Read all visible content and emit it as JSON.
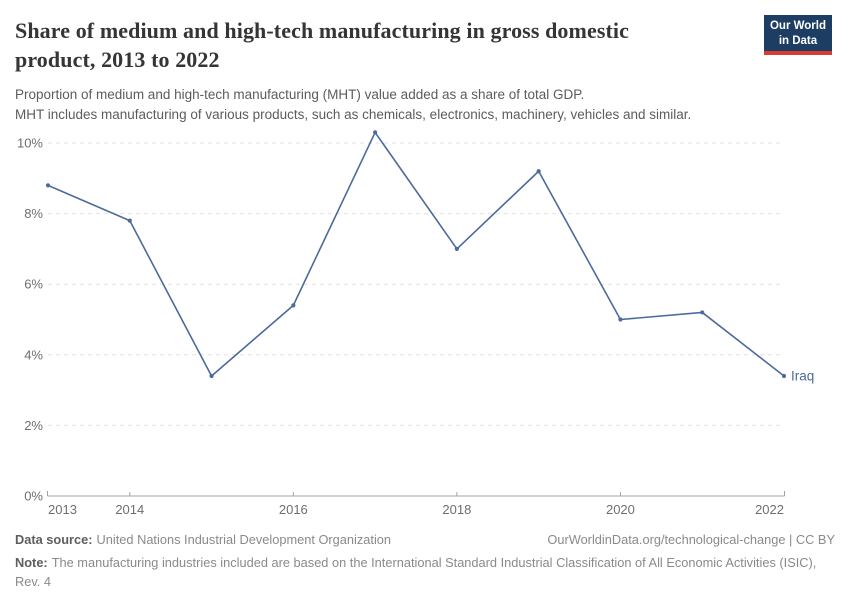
{
  "header": {
    "title": "Share of medium and high-tech manufacturing in gross domestic product, 2013 to 2022",
    "subtitle_line1": "Proportion of medium and high-tech manufacturing (MHT) value added as a share of total GDP.",
    "subtitle_line2": "MHT includes manufacturing of various products, such as chemicals, electronics, machinery, vehicles and similar.",
    "logo": {
      "line1": "Our World",
      "line2": "in Data"
    }
  },
  "chart_data": {
    "type": "line",
    "title": "Share of medium and high-tech manufacturing in gross domestic product, 2013 to 2022",
    "x": [
      2013,
      2014,
      2015,
      2016,
      2017,
      2018,
      2019,
      2020,
      2021,
      2022
    ],
    "series": [
      {
        "name": "Iraq",
        "color": "#4C6A9C",
        "values": [
          8.8,
          7.8,
          3.4,
          5.4,
          10.3,
          7.0,
          9.2,
          5.0,
          5.2,
          3.4
        ]
      }
    ],
    "x_ticks": [
      2013,
      2014,
      2016,
      2018,
      2020,
      2022
    ],
    "y_ticks": [
      0,
      2,
      4,
      6,
      8,
      10
    ],
    "y_tick_suffix": "%",
    "xlabel": "",
    "ylabel": "",
    "ylim": [
      0,
      10.6
    ],
    "x_range": [
      2013,
      2022
    ],
    "grid": "horizontal-dashed",
    "legend_position": "end-of-line-label"
  },
  "footer": {
    "data_source_label": "Data source:",
    "data_source": "United Nations Industrial Development Organization",
    "link": "OurWorldinData.org/technological-change | CC BY",
    "note_label": "Note:",
    "note": "The manufacturing industries included are based on the International Standard Industrial Classification of All Economic Activities (ISIC), Rev. 4"
  },
  "colors": {
    "line": "#4C6A9C",
    "grid": "#e2e2e2",
    "axis": "#a3a3a3",
    "axis_text": "#6e6e6e",
    "logo_bg": "#1d3d63",
    "logo_stripe": "#d93a32"
  }
}
